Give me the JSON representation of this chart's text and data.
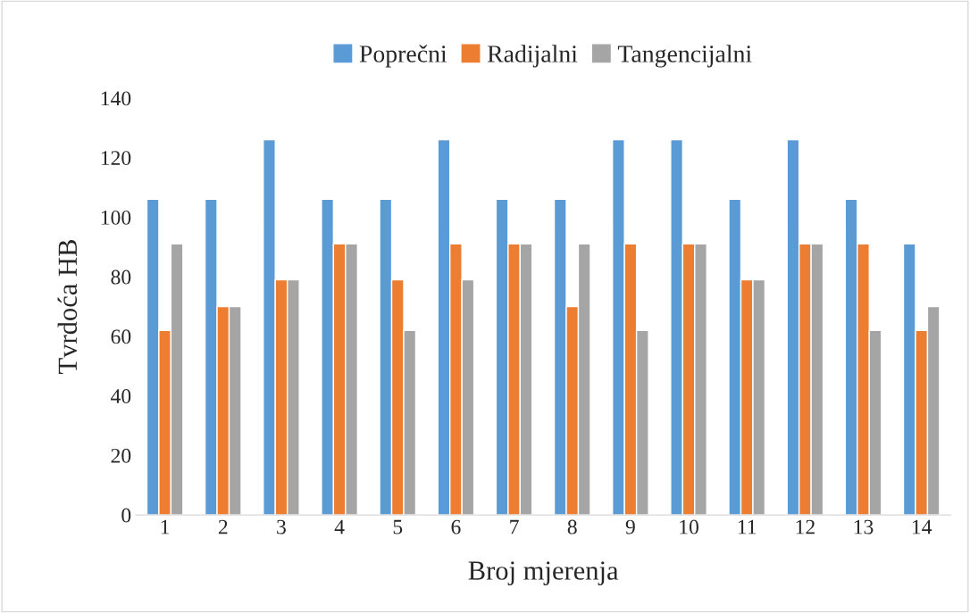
{
  "chart_data": {
    "type": "bar",
    "xlabel": "Broj mjerenja",
    "ylabel": "Tvrdoća HB",
    "categories": [
      "1",
      "2",
      "3",
      "4",
      "5",
      "6",
      "7",
      "8",
      "9",
      "10",
      "11",
      "12",
      "13",
      "14"
    ],
    "series": [
      {
        "name": "Poprečni",
        "color": "#5b9bd5",
        "values": [
          106,
          106,
          126,
          106,
          106,
          126,
          106,
          106,
          126,
          126,
          106,
          126,
          106,
          91
        ]
      },
      {
        "name": "Radijalni",
        "color": "#ed7d31",
        "values": [
          62,
          70,
          79,
          91,
          79,
          91,
          91,
          70,
          91,
          91,
          79,
          91,
          91,
          62
        ]
      },
      {
        "name": "Tangencijalni",
        "color": "#a5a5a5",
        "values": [
          91,
          70,
          79,
          91,
          62,
          79,
          91,
          91,
          62,
          91,
          79,
          91,
          62,
          70
        ]
      }
    ],
    "ylim": [
      0,
      140
    ],
    "yticks": [
      0,
      20,
      40,
      60,
      80,
      100,
      120,
      140
    ],
    "grid": false,
    "legend": "top"
  }
}
